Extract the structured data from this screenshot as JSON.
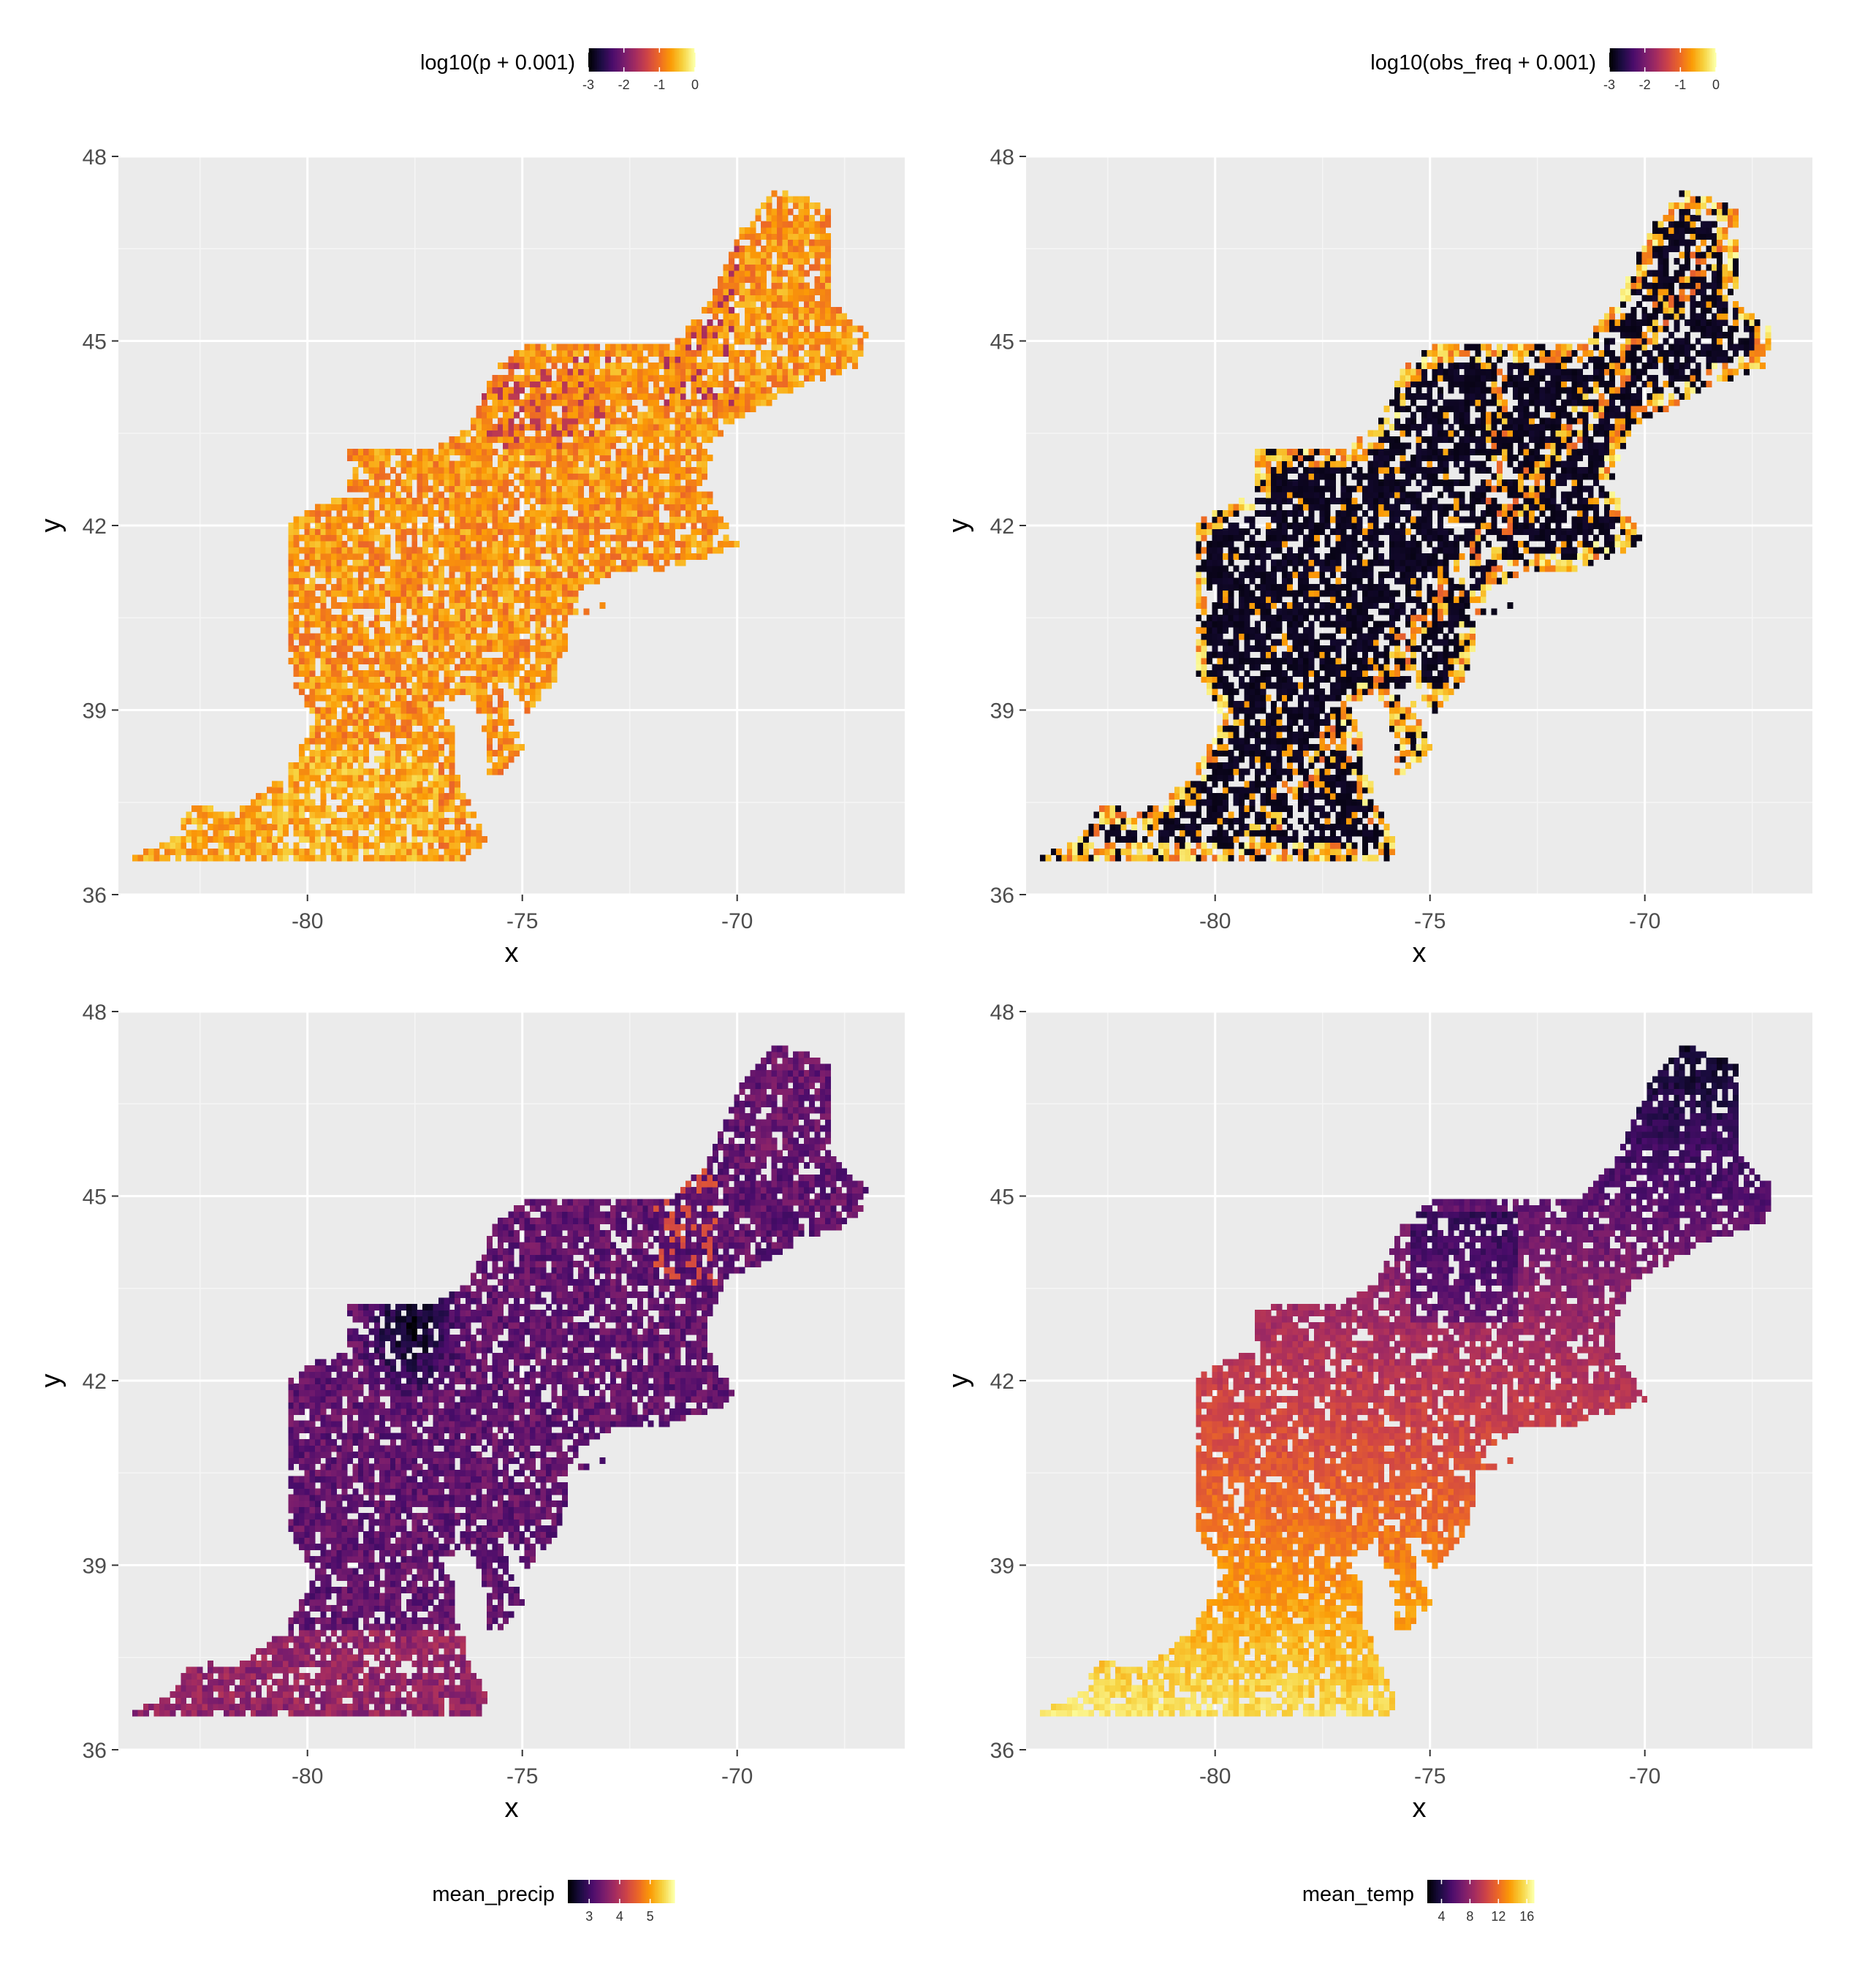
{
  "palette": {
    "panel_bg": "#EBEBEB",
    "grid_major": "#FFFFFF",
    "grid_minor": "#F5F5F5",
    "tick_text": "#4D4D4D",
    "axis_title": "#000000",
    "gap": "#FFFFFF",
    "inferno": [
      "#000004",
      "#1B0C41",
      "#4A0C6B",
      "#781C6D",
      "#A52C60",
      "#CF4446",
      "#ED6925",
      "#FB9B06",
      "#F7D13D",
      "#FCFFA4"
    ]
  },
  "chart_data": [
    {
      "type": "heatmap",
      "xlabel": "x",
      "ylabel": "y",
      "xlim": [
        -84.4,
        -66.1
      ],
      "ylim": [
        36.0,
        48.0
      ],
      "x_ticks": [
        "-80",
        "-75",
        "-70"
      ],
      "y_ticks": [
        "36",
        "39",
        "42",
        "45",
        "48"
      ],
      "legend": {
        "title": "log10(p + 0.001)",
        "position": "top",
        "range": [
          -3,
          0
        ],
        "breaks": [
          "-3",
          "-2",
          "-1",
          "0"
        ]
      },
      "value_pattern": "mostly -0.3 to -0.8 (orange); darker patches near -2 to -3 in northern interior",
      "value_base": 0.76,
      "value_spread": 0.07,
      "gap_rate": 0.16
    },
    {
      "type": "heatmap",
      "xlabel": "x",
      "ylabel": "y",
      "xlim": [
        -84.4,
        -66.1
      ],
      "ylim": [
        36.0,
        48.0
      ],
      "x_ticks": [
        "-80",
        "-75",
        "-70"
      ],
      "y_ticks": [
        "36",
        "39",
        "42",
        "45",
        "48"
      ],
      "legend": {
        "title": "log10(obs_freq + 0.001)",
        "position": "top",
        "range": [
          -3,
          0
        ],
        "breaks": [
          "-3",
          "-2",
          "-1",
          "0"
        ]
      },
      "value_pattern": "mostly -3 (black) with bright streaks near 0 along coasts and rivers",
      "value_base": 0.03,
      "value_spread": 0.05,
      "gap_rate": 0.24
    },
    {
      "type": "heatmap",
      "xlabel": "x",
      "ylabel": "y",
      "xlim": [
        -84.4,
        -66.1
      ],
      "ylim": [
        36.0,
        48.0
      ],
      "x_ticks": [
        "-80",
        "-75",
        "-70"
      ],
      "y_ticks": [
        "36",
        "39",
        "42",
        "45",
        "48"
      ],
      "legend": {
        "title": "mean_precip",
        "position": "bottom",
        "range": [
          2.3,
          5.8
        ],
        "breaks": [
          "3",
          "4",
          "5"
        ]
      },
      "value_pattern": "mostly 3.0 to 3.8 (purple); darkest near 2.4 around 43N 78W; higher near 4.5 along southern coast",
      "value_base": 0.28,
      "value_spread": 0.08,
      "gap_rate": 0.16
    },
    {
      "type": "heatmap",
      "xlabel": "x",
      "ylabel": "y",
      "xlim": [
        -84.4,
        -66.1
      ],
      "ylim": [
        36.0,
        48.0
      ],
      "x_ticks": [
        "-80",
        "-75",
        "-70"
      ],
      "y_ticks": [
        "36",
        "39",
        "42",
        "45",
        "48"
      ],
      "legend": {
        "title": "mean_temp",
        "position": "bottom",
        "range": [
          2,
          17
        ],
        "breaks": [
          "4",
          "8",
          "12",
          "16"
        ]
      },
      "value_pattern": "increases from about 3 in the north (Maine) to about 16 in the south (Virginia coast)",
      "value_base": 0.55,
      "value_spread": 0.05,
      "gap_rate": 0.16
    }
  ]
}
